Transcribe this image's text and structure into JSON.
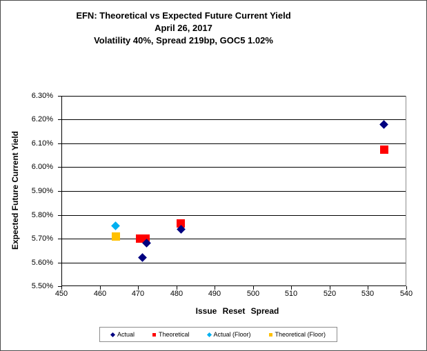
{
  "title": {
    "line1": "EFN: Theoretical vs Expected Future Current Yield",
    "line2": "April 26, 2017",
    "line3": "Volatility 40%, Spread 219bp, GOC5 1.02%"
  },
  "chart_data": {
    "type": "scatter",
    "title": "EFN: Theoretical vs Expected Future Current Yield",
    "subtitle": [
      "April 26, 2017",
      "Volatility 40%, Spread 219bp, GOC5 1.02%"
    ],
    "xlabel": "Issue Reset Spread",
    "ylabel": "Expected Future Current Yield",
    "xlim": [
      450,
      540
    ],
    "ylim": [
      5.5,
      6.3
    ],
    "x_ticks": [
      450,
      460,
      470,
      480,
      490,
      500,
      510,
      520,
      530,
      540
    ],
    "y_ticks": [
      5.5,
      5.6,
      5.7,
      5.8,
      5.9,
      6.0,
      6.1,
      6.2,
      6.3
    ],
    "y_tick_suffix": "%",
    "grid": "horizontal",
    "legend_position": "bottom",
    "series": [
      {
        "name": "Actual",
        "marker": "diamond",
        "color": "#000080",
        "points": [
          [
            471,
            5.62
          ],
          [
            472,
            5.68
          ],
          [
            481,
            5.74
          ],
          [
            534,
            6.18
          ]
        ]
      },
      {
        "name": "Theoretical",
        "marker": "square",
        "color": "#ff0000",
        "points": [
          [
            470.3,
            5.7
          ],
          [
            471.8,
            5.7
          ],
          [
            481,
            5.765
          ],
          [
            534,
            6.075
          ]
        ]
      },
      {
        "name": "Actual (Floor)",
        "marker": "diamond",
        "color": "#00b0f0",
        "points": [
          [
            464,
            5.755
          ]
        ]
      },
      {
        "name": "Theoretical (Floor)",
        "marker": "square",
        "color": "#ffc000",
        "points": [
          [
            464,
            5.71
          ]
        ]
      }
    ]
  }
}
